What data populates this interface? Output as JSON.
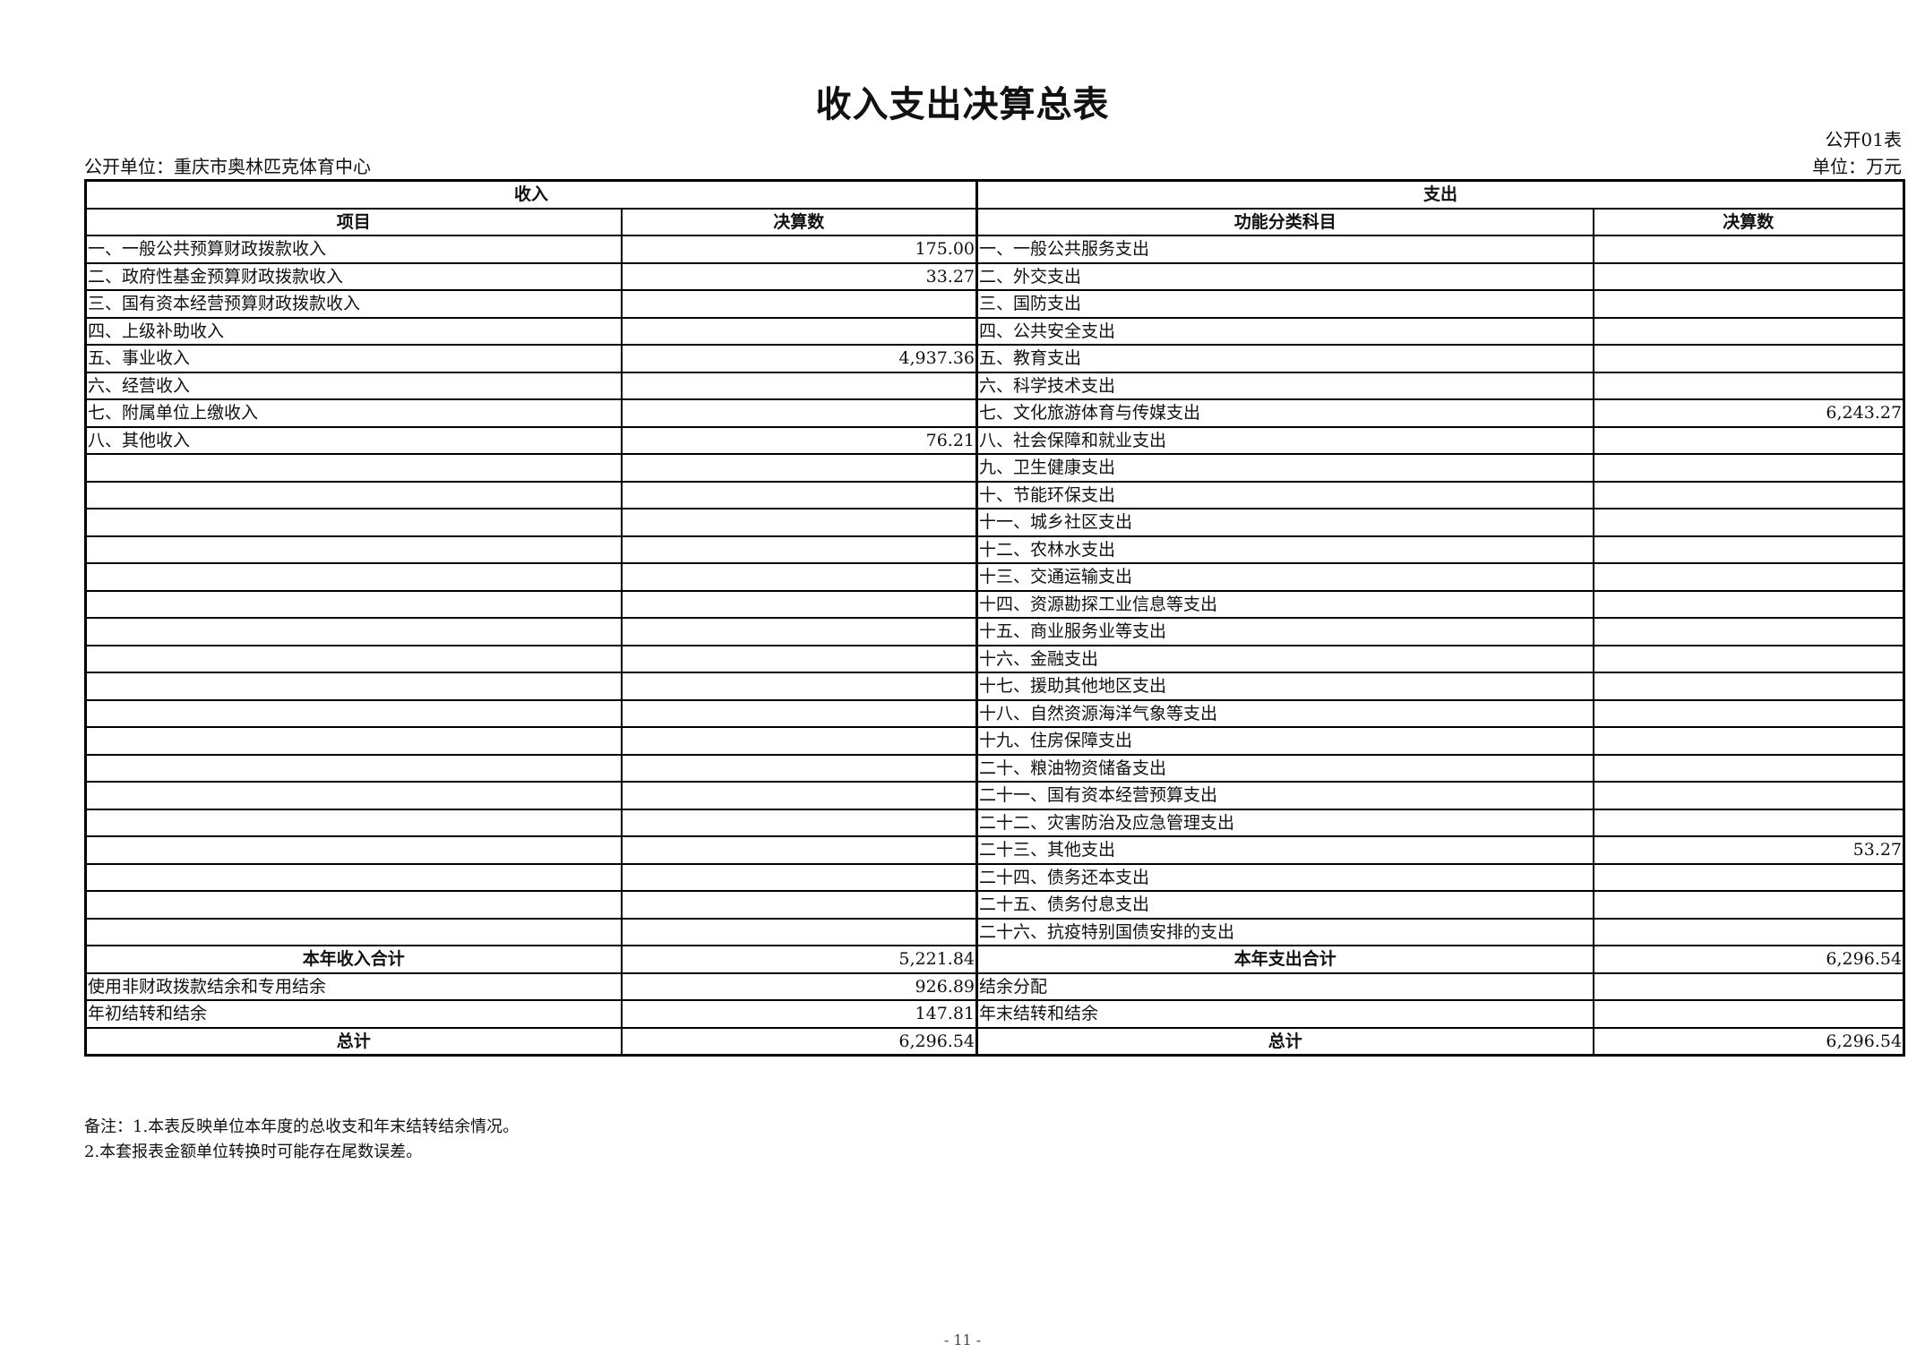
{
  "title": "收入支出决算总表",
  "table_code": "公开01表",
  "unit": "单位：万元",
  "org": "公开单位：重庆市奥林匹克体育中心",
  "headers": {
    "income": "收入",
    "expense": "支出",
    "item": "项目",
    "amount": "决算数",
    "func_item": "功能分类科目",
    "amount2": "决算数"
  },
  "rows": [
    {
      "in_label": "一、一般公共预算财政拨款收入",
      "in_value": "175.00",
      "out_label": "一、一般公共服务支出",
      "out_value": ""
    },
    {
      "in_label": "二、政府性基金预算财政拨款收入",
      "in_value": "33.27",
      "out_label": "二、外交支出",
      "out_value": ""
    },
    {
      "in_label": "三、国有资本经营预算财政拨款收入",
      "in_value": "",
      "out_label": "三、国防支出",
      "out_value": ""
    },
    {
      "in_label": "四、上级补助收入",
      "in_value": "",
      "out_label": "四、公共安全支出",
      "out_value": ""
    },
    {
      "in_label": "五、事业收入",
      "in_value": "4,937.36",
      "out_label": "五、教育支出",
      "out_value": ""
    },
    {
      "in_label": "六、经营收入",
      "in_value": "",
      "out_label": "六、科学技术支出",
      "out_value": ""
    },
    {
      "in_label": "七、附属单位上缴收入",
      "in_value": "",
      "out_label": "七、文化旅游体育与传媒支出",
      "out_value": "6,243.27"
    },
    {
      "in_label": "八、其他收入",
      "in_value": "76.21",
      "out_label": "八、社会保障和就业支出",
      "out_value": ""
    },
    {
      "in_label": "",
      "in_value": "",
      "out_label": "九、卫生健康支出",
      "out_value": ""
    },
    {
      "in_label": "",
      "in_value": "",
      "out_label": "十、节能环保支出",
      "out_value": ""
    },
    {
      "in_label": "",
      "in_value": "",
      "out_label": "十一、城乡社区支出",
      "out_value": ""
    },
    {
      "in_label": "",
      "in_value": "",
      "out_label": "十二、农林水支出",
      "out_value": ""
    },
    {
      "in_label": "",
      "in_value": "",
      "out_label": "十三、交通运输支出",
      "out_value": ""
    },
    {
      "in_label": "",
      "in_value": "",
      "out_label": "十四、资源勘探工业信息等支出",
      "out_value": ""
    },
    {
      "in_label": "",
      "in_value": "",
      "out_label": "十五、商业服务业等支出",
      "out_value": ""
    },
    {
      "in_label": "",
      "in_value": "",
      "out_label": "十六、金融支出",
      "out_value": ""
    },
    {
      "in_label": "",
      "in_value": "",
      "out_label": "十七、援助其他地区支出",
      "out_value": ""
    },
    {
      "in_label": "",
      "in_value": "",
      "out_label": "十八、自然资源海洋气象等支出",
      "out_value": ""
    },
    {
      "in_label": "",
      "in_value": "",
      "out_label": "十九、住房保障支出",
      "out_value": ""
    },
    {
      "in_label": "",
      "in_value": "",
      "out_label": "二十、粮油物资储备支出",
      "out_value": ""
    },
    {
      "in_label": "",
      "in_value": "",
      "out_label": "二十一、国有资本经营预算支出",
      "out_value": ""
    },
    {
      "in_label": "",
      "in_value": "",
      "out_label": "二十二、灾害防治及应急管理支出",
      "out_value": ""
    },
    {
      "in_label": "",
      "in_value": "",
      "out_label": "二十三、其他支出",
      "out_value": "53.27"
    },
    {
      "in_label": "",
      "in_value": "",
      "out_label": "二十四、债务还本支出",
      "out_value": ""
    },
    {
      "in_label": "",
      "in_value": "",
      "out_label": "二十五、债务付息支出",
      "out_value": ""
    },
    {
      "in_label": "",
      "in_value": "",
      "out_label": "二十六、抗疫特别国债安排的支出",
      "out_value": ""
    }
  ],
  "summary": [
    {
      "in_label": "本年收入合计",
      "in_value": "5,221.84",
      "out_label": "本年支出合计",
      "out_value": "6,296.54",
      "bold": true
    },
    {
      "in_label": "使用非财政拨款结余和专用结余",
      "in_value": "926.89",
      "out_label": "结余分配",
      "out_value": "",
      "bold": false
    },
    {
      "in_label": "年初结转和结余",
      "in_value": "147.81",
      "out_label": "年末结转和结余",
      "out_value": "",
      "bold": false
    },
    {
      "in_label": "总计",
      "in_value": "6,296.54",
      "out_label": "总计",
      "out_value": "6,296.54",
      "bold": true
    }
  ],
  "notes": [
    "备注：1.本表反映单位本年度的总收支和年末结转结余情况。",
    "2.本套报表金额单位转换时可能存在尾数误差。"
  ],
  "page_number": "- 11 -"
}
